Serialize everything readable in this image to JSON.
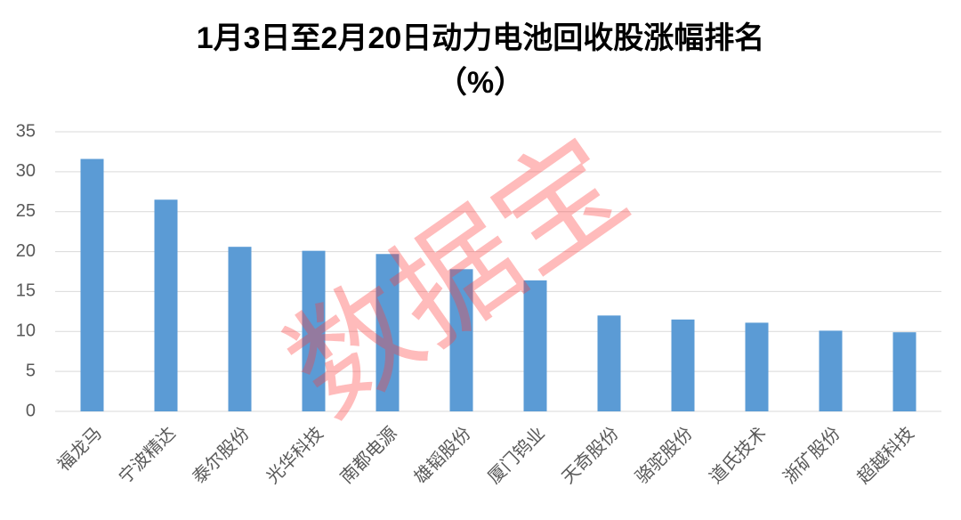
{
  "chart_data": {
    "type": "bar",
    "title": "1月3日至2月20日动力电池回收股涨幅排名",
    "subtitle": "（%）",
    "categories": [
      "福龙马",
      "宁波精达",
      "泰尔股份",
      "光华科技",
      "南都电源",
      "雄韬股份",
      "厦门钨业",
      "天奇股份",
      "骆驼股份",
      "道氏技术",
      "浙矿股份",
      "超越科技"
    ],
    "values": [
      31.6,
      26.5,
      20.6,
      20.1,
      19.7,
      17.8,
      16.4,
      12.0,
      11.5,
      11.1,
      10.1,
      9.9
    ],
    "color": "#5b9bd5",
    "ylim": [
      0,
      35
    ],
    "yticks": [
      0,
      5,
      10,
      15,
      20,
      25,
      30,
      35
    ],
    "grid": true,
    "watermark": "数据宝"
  }
}
